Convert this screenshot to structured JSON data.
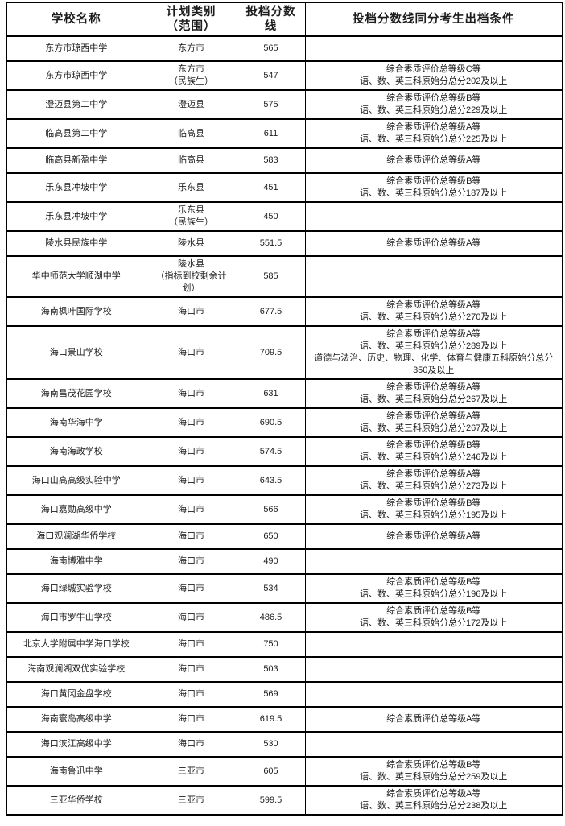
{
  "table": {
    "headers": {
      "school": "学校名称",
      "category": "计划类别\n（范围）",
      "score": "投档分数线",
      "conditions": "投档分数线同分考生出档条件"
    },
    "rows": [
      {
        "school": "东方市琼西中学",
        "category": "东方市",
        "score": "565",
        "conditions": ""
      },
      {
        "school": "东方市琼西中学",
        "category": "东方市\n（民族生）",
        "score": "547",
        "conditions": "综合素质评价总等级C等\n语、数、英三科原始分总分202及以上"
      },
      {
        "school": "澄迈县第二中学",
        "category": "澄迈县",
        "score": "575",
        "conditions": "综合素质评价总等级B等\n语、数、英三科原始分总分229及以上"
      },
      {
        "school": "临高县第二中学",
        "category": "临高县",
        "score": "611",
        "conditions": "综合素质评价总等级A等\n语、数、英三科原始分总分225及以上"
      },
      {
        "school": "临高县新盈中学",
        "category": "临高县",
        "score": "583",
        "conditions": "综合素质评价总等级A等"
      },
      {
        "school": "乐东县冲坡中学",
        "category": "乐东县",
        "score": "451",
        "conditions": "综合素质评价总等级B等\n语、数、英三科原始分总分187及以上"
      },
      {
        "school": "乐东县冲坡中学",
        "category": "乐东县\n（民族生）",
        "score": "450",
        "conditions": ""
      },
      {
        "school": "陵水县民族中学",
        "category": "陵水县",
        "score": "551.5",
        "conditions": "综合素质评价总等级A等"
      },
      {
        "school": "华中师范大学顺湖中学",
        "category": "陵水县\n（指标到校剩余计划）",
        "score": "585",
        "conditions": ""
      },
      {
        "school": "海南枫叶国际学校",
        "category": "海口市",
        "score": "677.5",
        "conditions": "综合素质评价总等级A等\n语、数、英三科原始分总分270及以上"
      },
      {
        "school": "海口景山学校",
        "category": "海口市",
        "score": "709.5",
        "conditions": "综合素质评价总等级A等\n语、数、英三科原始分总分289及以上\n道德与法治、历史、物理、化学、体育与健康五科原始分总分350及以上"
      },
      {
        "school": "海南昌茂花园学校",
        "category": "海口市",
        "score": "631",
        "conditions": "综合素质评价总等级A等\n语、数、英三科原始分总分267及以上"
      },
      {
        "school": "海南华海中学",
        "category": "海口市",
        "score": "690.5",
        "conditions": "综合素质评价总等级A等\n语、数、英三科原始分总分267及以上"
      },
      {
        "school": "海南海政学校",
        "category": "海口市",
        "score": "574.5",
        "conditions": "综合素质评价总等级B等\n语、数、英三科原始分总分246及以上"
      },
      {
        "school": "海口山高高级实验中学",
        "category": "海口市",
        "score": "643.5",
        "conditions": "综合素质评价总等级A等\n语、数、英三科原始分总分273及以上"
      },
      {
        "school": "海口嘉勋高级中学",
        "category": "海口市",
        "score": "566",
        "conditions": "综合素质评价总等级B等\n语、数、英三科原始分总分195及以上"
      },
      {
        "school": "海口观澜湖华侨学校",
        "category": "海口市",
        "score": "650",
        "conditions": "综合素质评价总等级A等"
      },
      {
        "school": "海南博雅中学",
        "category": "海口市",
        "score": "490",
        "conditions": ""
      },
      {
        "school": "海口绿城实验学校",
        "category": "海口市",
        "score": "534",
        "conditions": "综合素质评价总等级B等\n语、数、英三科原始分总分196及以上"
      },
      {
        "school": "海口市罗牛山学校",
        "category": "海口市",
        "score": "486.5",
        "conditions": "综合素质评价总等级B等\n语、数、英三科原始分总分172及以上"
      },
      {
        "school": "北京大学附属中学海口学校",
        "category": "海口市",
        "score": "750",
        "conditions": ""
      },
      {
        "school": "海南观澜湖双优实验学校",
        "category": "海口市",
        "score": "503",
        "conditions": ""
      },
      {
        "school": "海口黄冈金盘学校",
        "category": "海口市",
        "score": "569",
        "conditions": ""
      },
      {
        "school": "海南寰岛高级中学",
        "category": "海口市",
        "score": "619.5",
        "conditions": "综合素质评价总等级A等"
      },
      {
        "school": "海口滨江高级中学",
        "category": "海口市",
        "score": "530",
        "conditions": ""
      },
      {
        "school": "海南鲁迅中学",
        "category": "三亚市",
        "score": "605",
        "conditions": "综合素质评价总等级B等\n语、数、英三科原始分总分259及以上"
      },
      {
        "school": "三亚华侨学校",
        "category": "三亚市",
        "score": "599.5",
        "conditions": "综合素质评价总等级A等\n语、数、英三科原始分总分238及以上"
      }
    ]
  }
}
